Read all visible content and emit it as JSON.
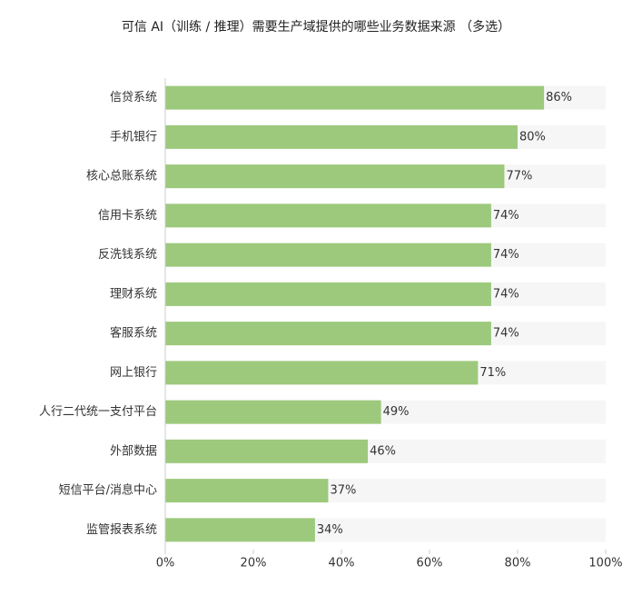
{
  "chart_data": {
    "type": "bar",
    "orientation": "horizontal",
    "title": "可信 AI（训练 / 推理）需要生产域提供的哪些业务数据来源 （多选）",
    "categories": [
      "信贷系统",
      "手机银行",
      "核心总账系统",
      "信用卡系统",
      "反洗钱系统",
      "理财系统",
      "客服系统",
      "网上银行",
      "人行二代统一支付平台",
      "外部数据",
      "短信平台/消息中心",
      "监管报表系统"
    ],
    "values": [
      86,
      80,
      77,
      74,
      74,
      74,
      74,
      71,
      49,
      46,
      37,
      34
    ],
    "value_labels": [
      "86%",
      "80%",
      "77%",
      "74%",
      "74%",
      "74%",
      "74%",
      "71%",
      "49%",
      "46%",
      "37%",
      "34%"
    ],
    "color": "#9dc97c",
    "xlim": [
      0,
      100
    ],
    "xticks": [
      {
        "value": 0,
        "label": "0%"
      },
      {
        "value": 20,
        "label": "20%"
      },
      {
        "value": 40,
        "label": "40%"
      },
      {
        "value": 60,
        "label": "60%"
      },
      {
        "value": 80,
        "label": "80%"
      },
      {
        "value": 100,
        "label": "100%"
      }
    ]
  }
}
